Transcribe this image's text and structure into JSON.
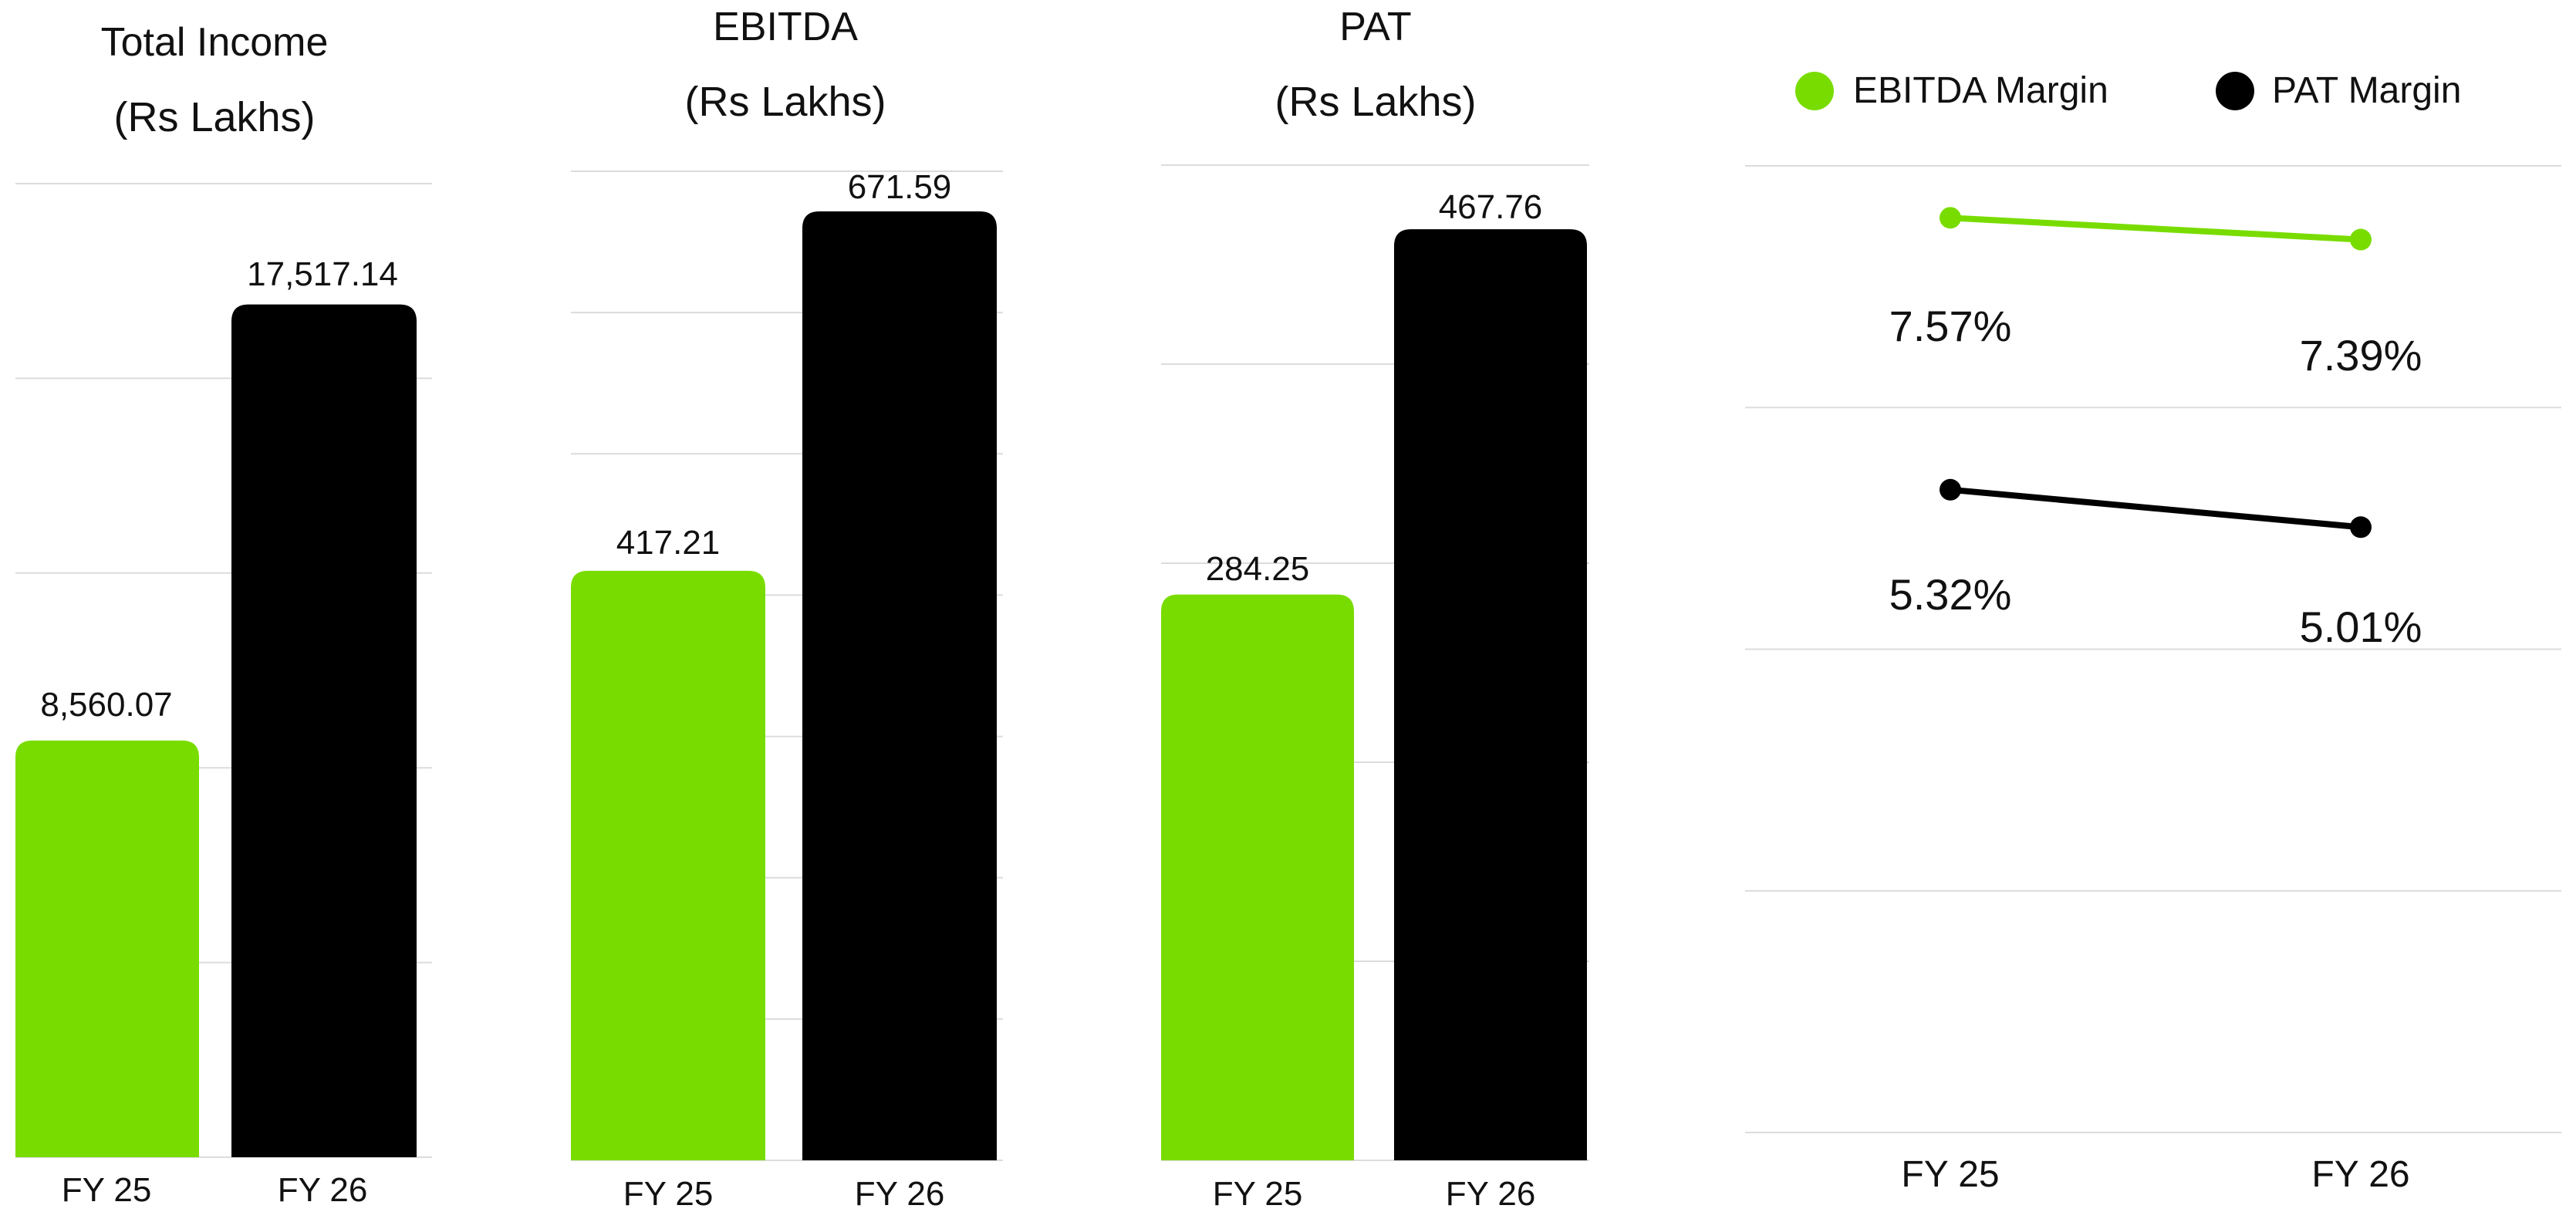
{
  "colors": {
    "fy25": "#79dc00",
    "fy26": "#000000",
    "ebitda_margin": "#79dc00",
    "pat_margin": "#000000",
    "grid": "#dcdcdc",
    "text": "#111111"
  },
  "chart_data": [
    {
      "type": "bar",
      "title": "Total Income",
      "subtitle": "(Rs Lakhs)",
      "categories": [
        "FY 25",
        "FY 26"
      ],
      "values": [
        8560.07,
        17517.14
      ],
      "value_labels": [
        "8,560.07",
        "17,517.14"
      ],
      "ylim": [
        0,
        20000
      ],
      "grid": true,
      "grid_lines": 5,
      "legend": "none"
    },
    {
      "type": "bar",
      "title": "EBITDA",
      "subtitle": "(Rs Lakhs)",
      "categories": [
        "FY 25",
        "FY 26"
      ],
      "values": [
        417.21,
        671.59
      ],
      "value_labels": [
        "417.21",
        "671.59"
      ],
      "ylim": [
        0,
        700
      ],
      "grid": true,
      "grid_lines": 7,
      "legend": "none"
    },
    {
      "type": "bar",
      "title": "PAT",
      "subtitle": "(Rs Lakhs)",
      "categories": [
        "FY 25",
        "FY 26"
      ],
      "values": [
        284.25,
        467.76
      ],
      "value_labels": [
        "284.25",
        "467.76"
      ],
      "ylim": [
        0,
        500
      ],
      "grid": true,
      "grid_lines": 5,
      "legend": "none"
    },
    {
      "type": "line",
      "title": "",
      "categories": [
        "FY 25",
        "FY 26"
      ],
      "series": [
        {
          "name": "EBITDA Margin",
          "values": [
            7.57,
            7.39
          ],
          "labels": [
            "7.57%",
            "7.39%"
          ]
        },
        {
          "name": "PAT Margin",
          "values": [
            5.32,
            5.01
          ],
          "labels": [
            "5.32%",
            "5.01%"
          ]
        }
      ],
      "ylim": [
        0,
        8
      ],
      "grid": true,
      "grid_lines": 4,
      "legend": "top"
    }
  ]
}
